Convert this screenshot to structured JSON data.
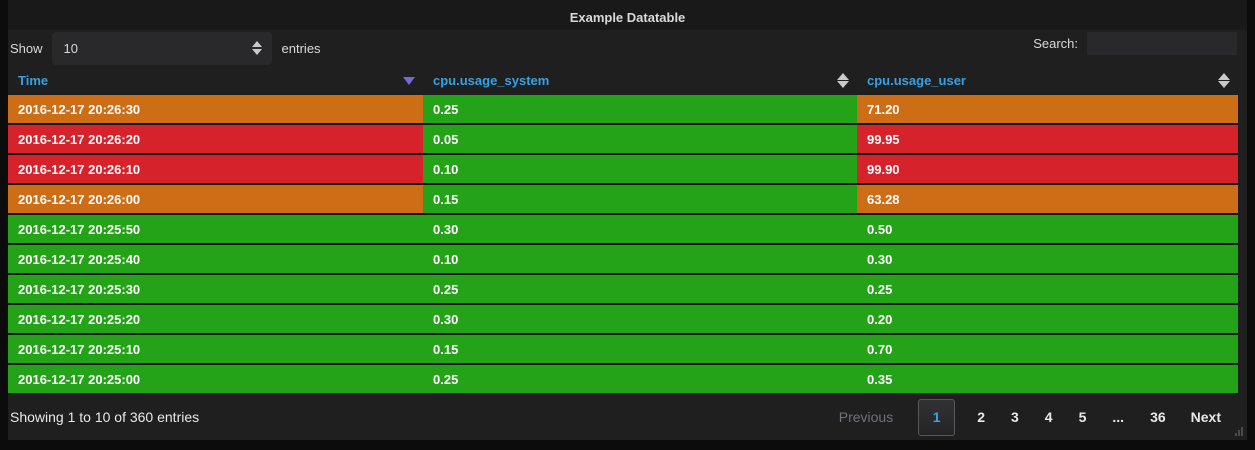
{
  "panel": {
    "title": "Example Datatable"
  },
  "controls": {
    "show_label": "Show",
    "page_size": "10",
    "entries_label": "entries",
    "search_label": "Search:",
    "search_value": ""
  },
  "table": {
    "columns": [
      {
        "label": "Time",
        "sort": "desc"
      },
      {
        "label": "cpu.usage_system",
        "sort": "none"
      },
      {
        "label": "cpu.usage_user",
        "sort": "none"
      }
    ],
    "rows": [
      {
        "time": "2016-12-17 20:26:30",
        "system": "0.25",
        "user": "71.20",
        "colors": [
          "orange",
          "green",
          "orange"
        ]
      },
      {
        "time": "2016-12-17 20:26:20",
        "system": "0.05",
        "user": "99.95",
        "colors": [
          "red",
          "green",
          "red"
        ]
      },
      {
        "time": "2016-12-17 20:26:10",
        "system": "0.10",
        "user": "99.90",
        "colors": [
          "red",
          "green",
          "red"
        ]
      },
      {
        "time": "2016-12-17 20:26:00",
        "system": "0.15",
        "user": "63.28",
        "colors": [
          "orange",
          "green",
          "orange"
        ]
      },
      {
        "time": "2016-12-17 20:25:50",
        "system": "0.30",
        "user": "0.50",
        "colors": [
          "green",
          "green",
          "green"
        ]
      },
      {
        "time": "2016-12-17 20:25:40",
        "system": "0.10",
        "user": "0.30",
        "colors": [
          "green",
          "green",
          "green"
        ]
      },
      {
        "time": "2016-12-17 20:25:30",
        "system": "0.25",
        "user": "0.25",
        "colors": [
          "green",
          "green",
          "green"
        ]
      },
      {
        "time": "2016-12-17 20:25:20",
        "system": "0.30",
        "user": "0.20",
        "colors": [
          "green",
          "green",
          "green"
        ]
      },
      {
        "time": "2016-12-17 20:25:10",
        "system": "0.15",
        "user": "0.70",
        "colors": [
          "green",
          "green",
          "green"
        ]
      },
      {
        "time": "2016-12-17 20:25:00",
        "system": "0.25",
        "user": "0.35",
        "colors": [
          "green",
          "green",
          "green"
        ]
      }
    ]
  },
  "footer": {
    "summary": "Showing 1 to 10 of 360 entries",
    "pagination": {
      "previous_label": "Previous",
      "pages": [
        "1",
        "2",
        "3",
        "4",
        "5",
        "...",
        "36"
      ],
      "active_page": "1",
      "next_label": "Next"
    }
  },
  "colors": {
    "green": "#25a318",
    "orange": "#cd6e17",
    "red": "#d6232b",
    "header_blue": "#33a2e5",
    "sort_desc_arrow": "#7568d8",
    "sort_idle_arrow": "#c9c9cc"
  }
}
